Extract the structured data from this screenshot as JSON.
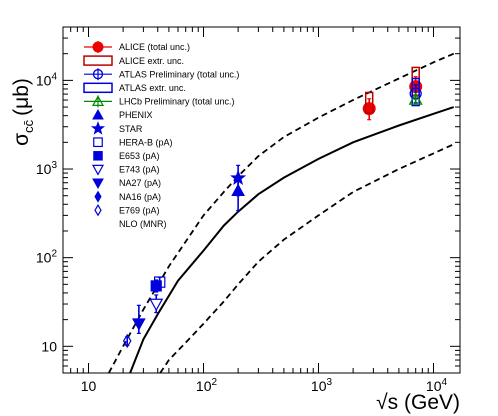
{
  "chart_data": {
    "type": "scatter",
    "title": "",
    "xlabel": "√s (GeV)",
    "ylabel": "σ_cc̄ (μb)",
    "ylabel_main": "σ",
    "ylabel_sub": "cc̄",
    "ylabel_unit": "(μb)",
    "x_scale": "log",
    "y_scale": "log",
    "xlim": [
      6,
      17000
    ],
    "ylim": [
      5,
      40000
    ],
    "grid": false,
    "legend_position": "top-left",
    "x_ticks": [
      {
        "value": 10,
        "label": "10"
      },
      {
        "value": 100,
        "label": "10",
        "exp": "2"
      },
      {
        "value": 1000,
        "label": "10",
        "exp": "3"
      },
      {
        "value": 10000,
        "label": "10",
        "exp": "4"
      }
    ],
    "y_ticks": [
      {
        "value": 10,
        "label": "10"
      },
      {
        "value": 100,
        "label": "10",
        "exp": "2"
      },
      {
        "value": 1000,
        "label": "10",
        "exp": "3"
      },
      {
        "value": 10000,
        "label": "10",
        "exp": "4"
      }
    ],
    "series": [
      {
        "name": "ALICE (total unc.)",
        "marker": "filled-circle",
        "color": "#ee0000",
        "points": [
          {
            "x": 2760,
            "y": 4800,
            "ylo": 3600,
            "yhi": 6200
          },
          {
            "x": 7000,
            "y": 8500,
            "ylo": 6300,
            "yhi": 11000
          }
        ]
      },
      {
        "name": "ALICE extr. unc.",
        "marker": "box",
        "color": "#bb0000",
        "points": [
          {
            "x": 2760,
            "ylo": 4300,
            "yhi": 7300
          },
          {
            "x": 7000,
            "ylo": 6800,
            "yhi": 14000
          }
        ]
      },
      {
        "name": "ATLAS Preliminary (total unc.)",
        "marker": "open-circle",
        "color": "#0000dd",
        "points": [
          {
            "x": 7000,
            "y": 7100,
            "ylo": 5600,
            "yhi": 8900
          }
        ]
      },
      {
        "name": "ATLAS extr. unc.",
        "marker": "box",
        "color": "#0000dd",
        "points": [
          {
            "x": 7000,
            "ylo": 5200,
            "yhi": 10500
          }
        ]
      },
      {
        "name": "LHCb Preliminary (total unc.)",
        "marker": "open-triangle-up",
        "color": "#008800",
        "points": [
          {
            "x": 7000,
            "y": 6100,
            "ylo": 5500,
            "yhi": 6800
          }
        ]
      },
      {
        "name": "PHENIX",
        "marker": "filled-triangle-up",
        "color": "#0000dd",
        "points": [
          {
            "x": 200,
            "y": 570,
            "ylo": 340,
            "yhi": 800
          }
        ]
      },
      {
        "name": "STAR",
        "marker": "filled-star",
        "color": "#0000dd",
        "points": [
          {
            "x": 200,
            "y": 790,
            "ylo": 500,
            "yhi": 1100
          }
        ]
      },
      {
        "name": "HERA-B (pA)",
        "marker": "open-square",
        "color": "#0000dd",
        "points": [
          {
            "x": 41.6,
            "y": 53,
            "ylo": 44,
            "yhi": 60
          }
        ]
      },
      {
        "name": "E653 (pA)",
        "marker": "filled-square",
        "color": "#0000dd",
        "points": [
          {
            "x": 38.8,
            "y": 48,
            "ylo": 41,
            "yhi": 56
          }
        ]
      },
      {
        "name": "E743 (pA)",
        "marker": "open-triangle-down",
        "color": "#0000dd",
        "points": [
          {
            "x": 38.8,
            "y": 30,
            "ylo": 24,
            "yhi": 38
          }
        ]
      },
      {
        "name": "NA27 (pA)",
        "marker": "filled-triangle-down",
        "color": "#0000dd",
        "points": [
          {
            "x": 27.4,
            "y": 18,
            "ylo": 14,
            "yhi": 29
          }
        ]
      },
      {
        "name": "NA16 (pA)",
        "marker": "filled-diamond",
        "color": "#0000dd",
        "points": []
      },
      {
        "name": "E769 (pA)",
        "marker": "open-diamond",
        "color": "#0000dd",
        "points": [
          {
            "x": 21.7,
            "y": 11.5,
            "ylo": 10.2,
            "yhi": 12.8
          }
        ]
      }
    ],
    "curves": [
      {
        "name": "NLO (MNR)",
        "style": "solid",
        "color": "#000000",
        "points": [
          [
            23,
            5
          ],
          [
            30,
            12
          ],
          [
            40,
            23
          ],
          [
            60,
            55
          ],
          [
            100,
            120
          ],
          [
            150,
            230
          ],
          [
            200,
            330
          ],
          [
            300,
            520
          ],
          [
            500,
            800
          ],
          [
            1000,
            1300
          ],
          [
            2000,
            2000
          ],
          [
            5000,
            3100
          ],
          [
            10000,
            4200
          ],
          [
            15000,
            5000
          ]
        ]
      },
      {
        "name": "NLO upper band",
        "style": "dashed",
        "color": "#000000",
        "points": [
          [
            15,
            5
          ],
          [
            20,
            10
          ],
          [
            30,
            26
          ],
          [
            50,
            80
          ],
          [
            100,
            300
          ],
          [
            150,
            550
          ],
          [
            200,
            830
          ],
          [
            300,
            1400
          ],
          [
            500,
            2300
          ],
          [
            1000,
            3800
          ],
          [
            2000,
            6000
          ],
          [
            5000,
            10500
          ],
          [
            10000,
            16000
          ],
          [
            15000,
            20000
          ]
        ]
      },
      {
        "name": "NLO lower band",
        "style": "dashed",
        "color": "#000000",
        "points": [
          [
            42,
            5
          ],
          [
            50,
            7
          ],
          [
            70,
            11
          ],
          [
            100,
            18
          ],
          [
            150,
            32
          ],
          [
            200,
            50
          ],
          [
            300,
            90
          ],
          [
            500,
            160
          ],
          [
            1000,
            300
          ],
          [
            2000,
            550
          ],
          [
            5000,
            1000
          ],
          [
            10000,
            1500
          ],
          [
            15000,
            1900
          ]
        ]
      }
    ]
  }
}
